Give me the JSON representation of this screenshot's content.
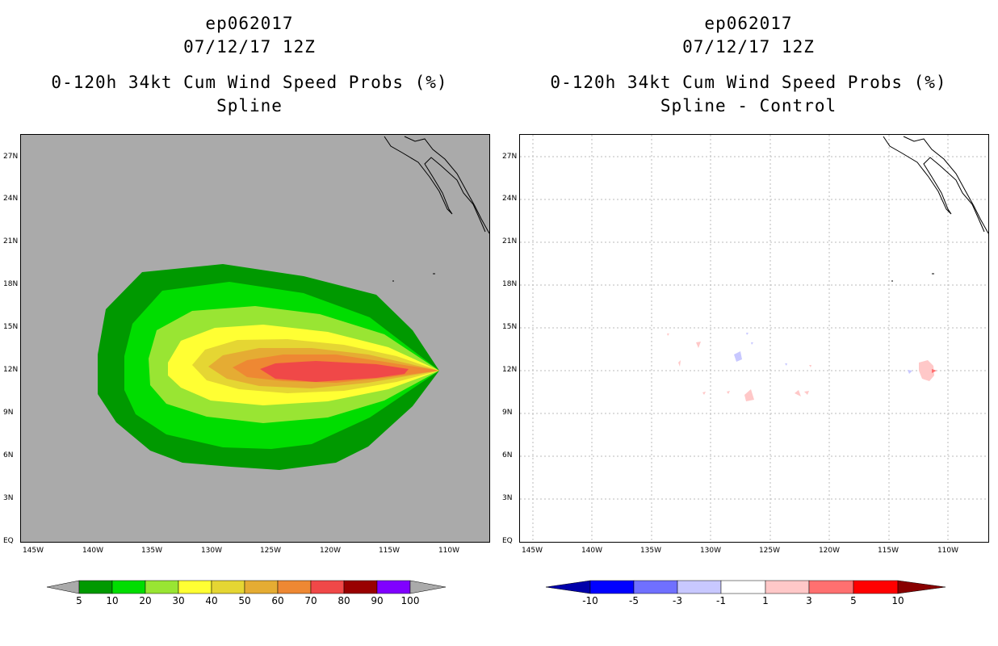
{
  "left_panel": {
    "storm_id": "ep062017",
    "datetime": "07/12/17 12Z",
    "product": "0-120h 34kt Cum Wind Speed Probs (%)",
    "method": "Spline"
  },
  "right_panel": {
    "storm_id": "ep062017",
    "datetime": "07/12/17 12Z",
    "product": "0-120h 34kt Cum Wind Speed Probs (%)",
    "method": "Spline - Control"
  },
  "chart_data": [
    {
      "type": "heatmap",
      "title": "0-120h 34kt Cum Wind Speed Probs (%) — Spline",
      "x_range_deg_west": [
        146,
        107
      ],
      "y_range_deg_north": [
        0,
        28.5
      ],
      "lat_ticks": [
        "EQ",
        "3N",
        "6N",
        "9N",
        "12N",
        "15N",
        "18N",
        "21N",
        "24N",
        "27N"
      ],
      "lon_ticks": [
        "145W",
        "140W",
        "135W",
        "130W",
        "125W",
        "120W",
        "115W",
        "110W"
      ],
      "storm_center": {
        "lon": "111W",
        "lat": "12N"
      },
      "levels": [
        5,
        10,
        20,
        30,
        40,
        50,
        60,
        70,
        80,
        90,
        100
      ],
      "colorbar_labels": [
        "5",
        "10",
        "20",
        "30",
        "40",
        "50",
        "60",
        "70",
        "80",
        "90",
        "100"
      ],
      "colors": [
        "#009900",
        "#00dd00",
        "#99e533",
        "#ffff33",
        "#e5d633",
        "#e5ac33",
        "#ee8833",
        "#f04848",
        "#990000",
        "#8000ff"
      ],
      "background_color": "#aaaaaa"
    },
    {
      "type": "heatmap",
      "title": "0-120h 34kt Cum Wind Speed Probs (%) — Spline - Control",
      "x_range_deg_west": [
        146,
        107
      ],
      "y_range_deg_north": [
        0,
        28.5
      ],
      "lat_ticks": [
        "EQ",
        "3N",
        "6N",
        "9N",
        "12N",
        "15N",
        "18N",
        "21N",
        "24N",
        "27N"
      ],
      "lon_ticks": [
        "145W",
        "140W",
        "135W",
        "130W",
        "125W",
        "120W",
        "115W",
        "110W"
      ],
      "levels": [
        -10,
        -5,
        -3,
        -1,
        1,
        3,
        5,
        10
      ],
      "colorbar_labels": [
        "-10",
        "-5",
        "-3",
        "-1",
        "1",
        "3",
        "5",
        "10"
      ],
      "colors": [
        "#0000aa",
        "#0000ff",
        "#7070ff",
        "#c8c8ff",
        "#ffffff",
        "#ffc8c8",
        "#ff7070",
        "#ff0000",
        "#880000"
      ]
    }
  ]
}
